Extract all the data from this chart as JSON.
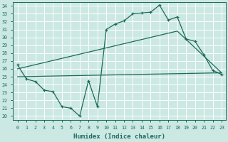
{
  "xlabel": "Humidex (Indice chaleur)",
  "bg_color": "#cce8e3",
  "grid_color": "#ffffff",
  "line_color": "#1a6b5a",
  "xlim": [
    -0.5,
    23.5
  ],
  "ylim": [
    19.5,
    34.5
  ],
  "xticks": [
    0,
    1,
    2,
    3,
    4,
    5,
    6,
    7,
    8,
    9,
    10,
    11,
    12,
    13,
    14,
    15,
    16,
    17,
    18,
    19,
    20,
    21,
    22,
    23
  ],
  "yticks": [
    20,
    21,
    22,
    23,
    24,
    25,
    26,
    27,
    28,
    29,
    30,
    31,
    32,
    33,
    34
  ],
  "curve1_x": [
    0,
    1,
    2,
    3,
    4,
    5,
    6,
    7,
    8,
    9,
    10,
    11,
    12,
    13,
    14,
    15,
    16,
    17,
    18,
    19,
    20,
    21,
    22,
    23
  ],
  "curve1_y": [
    26.5,
    24.7,
    24.4,
    23.3,
    23.1,
    21.2,
    21.0,
    20.0,
    24.5,
    21.2,
    31.0,
    31.7,
    32.1,
    33.0,
    33.1,
    33.2,
    34.1,
    32.2,
    32.6,
    29.8,
    29.5,
    27.8,
    25.8,
    25.3
  ],
  "line2_x": [
    0,
    18,
    23
  ],
  "line2_y": [
    26.0,
    30.8,
    25.5
  ],
  "line3_x": [
    0,
    23
  ],
  "line3_y": [
    25.0,
    25.5
  ]
}
